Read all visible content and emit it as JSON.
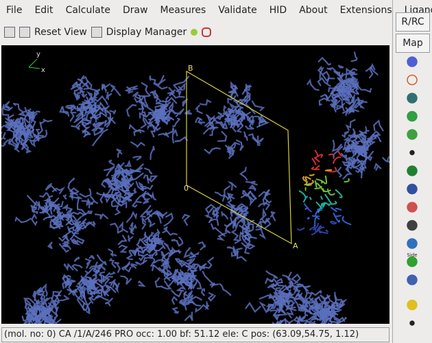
{
  "menu": [
    "File",
    "Edit",
    "Calculate",
    "Draw",
    "Measures",
    "Validate",
    "HID",
    "About",
    "Extensions",
    "Ligand"
  ],
  "toolbar": {
    "reset_view": "Reset View",
    "display_manager": "Display Manager"
  },
  "side_panel": {
    "rrc": "R/RC",
    "map": "Map",
    "side_icon": "Side"
  },
  "viewport": {
    "axis_y": "y",
    "axis_x": "x",
    "cell_b": "B",
    "cell_origin": "0",
    "cell_a": "A"
  },
  "status": "(mol. no: 0)  CA /1/A/246 PRO occ:  1.00 bf: 51.12 ele:  C pos: (63.09,54.75, 1.12)"
}
